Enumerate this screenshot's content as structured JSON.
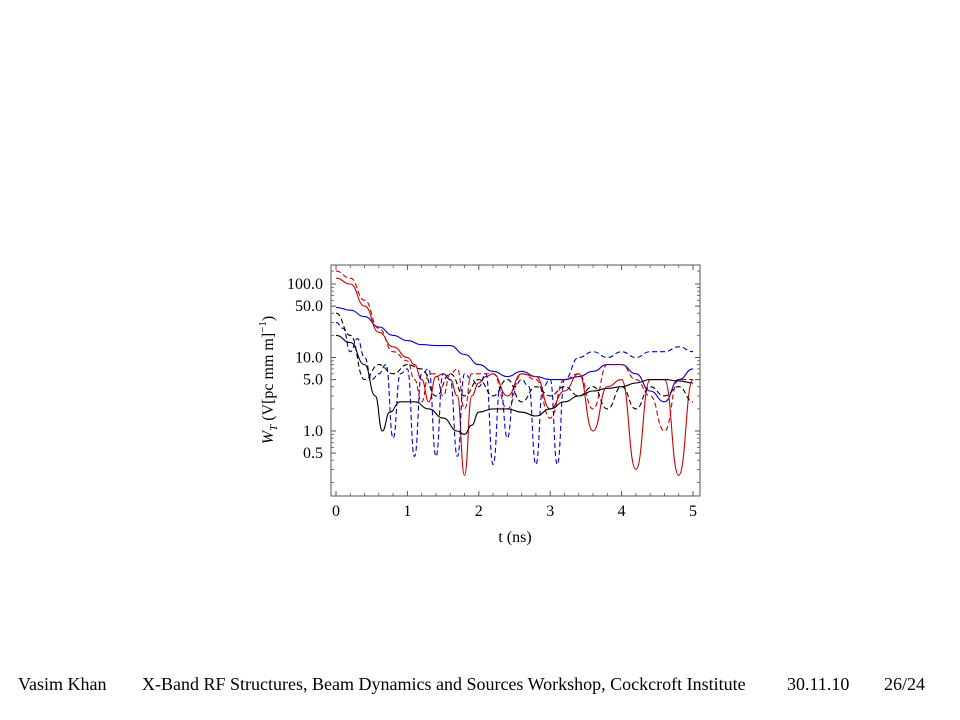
{
  "chart_data": {
    "type": "line",
    "xlabel": "t (ns)",
    "ylabel_var": "W",
    "ylabel_sub": "T",
    "ylabel_unit": " (V[pc mm m]",
    "ylabel_exp": "−1",
    "ylabel_close": ")",
    "xlim": [
      0,
      5
    ],
    "ylim": [
      0.2,
      160
    ],
    "yscale": "log",
    "xticks": [
      0,
      1,
      2,
      3,
      4,
      5
    ],
    "xtick_labels": [
      "0",
      "1",
      "2",
      "3",
      "4",
      "5"
    ],
    "yticks": [
      0.5,
      1,
      5,
      10,
      50,
      100
    ],
    "ytick_labels": [
      "0.5",
      "1.0",
      "5.0",
      "10.0",
      "50.0",
      "100.0"
    ],
    "grid": false,
    "series": [
      {
        "color": "#0000cc",
        "style": "solid",
        "x": [
          0,
          0.2,
          0.4,
          0.6,
          0.8,
          1.0,
          1.2,
          1.4,
          1.6,
          1.8,
          2.0,
          2.2,
          2.4,
          2.6,
          2.8,
          3.0,
          3.2,
          3.4,
          3.6,
          3.8,
          4.0,
          4.2,
          4.4,
          4.6,
          4.8,
          5.0
        ],
        "y": [
          48,
          44,
          36,
          26,
          20,
          17,
          15,
          14.5,
          14.5,
          11,
          8,
          6.5,
          5.5,
          6.5,
          5.5,
          5,
          5,
          5.5,
          6.5,
          8,
          8,
          6,
          3.5,
          2.5,
          5,
          7
        ]
      },
      {
        "color": "#cc0000",
        "style": "solid",
        "x": [
          0,
          0.2,
          0.4,
          0.6,
          0.8,
          1.0,
          1.1,
          1.2,
          1.3,
          1.4,
          1.5,
          1.6,
          1.7,
          1.8,
          1.9,
          2.0,
          2.1,
          2.2,
          2.4,
          2.6,
          2.8,
          3.0,
          3.2,
          3.4,
          3.6,
          3.8,
          4.0,
          4.2,
          4.4,
          4.6,
          4.8,
          5.0
        ],
        "y": [
          120,
          100,
          50,
          22,
          14,
          10,
          8,
          5,
          2.5,
          5.5,
          6,
          5,
          3,
          0.25,
          3,
          4.5,
          5.5,
          6,
          3,
          6,
          5.5,
          2,
          3.5,
          6,
          1,
          4,
          5,
          0.3,
          5,
          5,
          0.25,
          5
        ]
      },
      {
        "color": "#cc0000",
        "style": "dashed",
        "x": [
          0,
          0.2,
          0.4,
          0.6,
          0.8,
          1.0,
          1.1,
          1.2,
          1.3,
          1.4,
          1.5,
          1.6,
          1.7,
          1.8,
          1.9,
          2.0,
          2.2,
          2.4,
          2.6,
          2.8,
          3.0,
          3.2,
          3.4,
          3.6,
          3.8,
          4.0,
          4.2,
          4.4,
          4.6,
          4.8,
          5.0
        ],
        "y": [
          150,
          120,
          60,
          25,
          12,
          9,
          5,
          2.5,
          6,
          6,
          3,
          6,
          7,
          2,
          6,
          6,
          6,
          2,
          6,
          5,
          1.5,
          5,
          6,
          2,
          8,
          8,
          5,
          3,
          1,
          5,
          5
        ]
      },
      {
        "color": "#0000cc",
        "style": "dashed",
        "x": [
          0,
          0.1,
          0.2,
          0.3,
          0.4,
          0.5,
          0.6,
          0.7,
          0.8,
          0.9,
          1.0,
          1.1,
          1.2,
          1.3,
          1.4,
          1.5,
          1.6,
          1.7,
          1.8,
          1.9,
          2.0,
          2.1,
          2.2,
          2.3,
          2.4,
          2.5,
          2.6,
          2.7,
          2.8,
          2.9,
          3.0,
          3.1,
          3.2,
          3.4,
          3.6,
          3.8,
          4.0,
          4.2,
          4.4,
          4.6,
          4.8,
          5.0
        ],
        "y": [
          30,
          25,
          12,
          18,
          10,
          5,
          6,
          8,
          0.8,
          6,
          7,
          0.45,
          6,
          7,
          0.45,
          6,
          5,
          0.45,
          6,
          5,
          4,
          6,
          0.35,
          4,
          0.8,
          4,
          5,
          4,
          0.35,
          4,
          5,
          0.35,
          5,
          10,
          12,
          10,
          12,
          10,
          12,
          12,
          14,
          12
        ]
      },
      {
        "color": "#000000",
        "style": "dashed",
        "x": [
          0,
          0.2,
          0.4,
          0.6,
          0.8,
          1.0,
          1.2,
          1.4,
          1.6,
          1.8,
          2.0,
          2.2,
          2.4,
          2.6,
          2.8,
          3.0,
          3.2,
          3.4,
          3.6,
          3.8,
          4.0,
          4.2,
          4.4,
          4.6,
          4.8,
          5.0
        ],
        "y": [
          40,
          20,
          5,
          8,
          6,
          8,
          7,
          3,
          6,
          3,
          5,
          3,
          5,
          2.5,
          4,
          3,
          4,
          3,
          4,
          2,
          4,
          2,
          4,
          3,
          4,
          2.5
        ]
      },
      {
        "color": "#000000",
        "style": "solid",
        "x": [
          0,
          0.2,
          0.4,
          0.55,
          0.65,
          0.75,
          0.9,
          1.1,
          1.3,
          1.5,
          1.7,
          1.8,
          1.9,
          2.0,
          2.2,
          2.4,
          2.6,
          2.8,
          3.0,
          3.2,
          3.4,
          3.6,
          3.8,
          4.0,
          4.2,
          4.4,
          4.6,
          4.8,
          5.0
        ],
        "y": [
          20,
          16,
          8,
          3,
          1,
          1.8,
          2.5,
          2.5,
          2,
          1.5,
          1,
          0.9,
          1.2,
          1.8,
          2,
          2,
          1.8,
          1.6,
          2,
          2.5,
          3,
          3.5,
          3.8,
          4,
          4.5,
          5,
          5,
          4.8,
          4.5
        ]
      }
    ]
  },
  "footer": {
    "author": "Vasim Khan",
    "event": "X-Band RF Structures, Beam Dynamics and Sources Workshop, Cockcroft Institute",
    "date": "30.11.10",
    "page": "26/24"
  }
}
